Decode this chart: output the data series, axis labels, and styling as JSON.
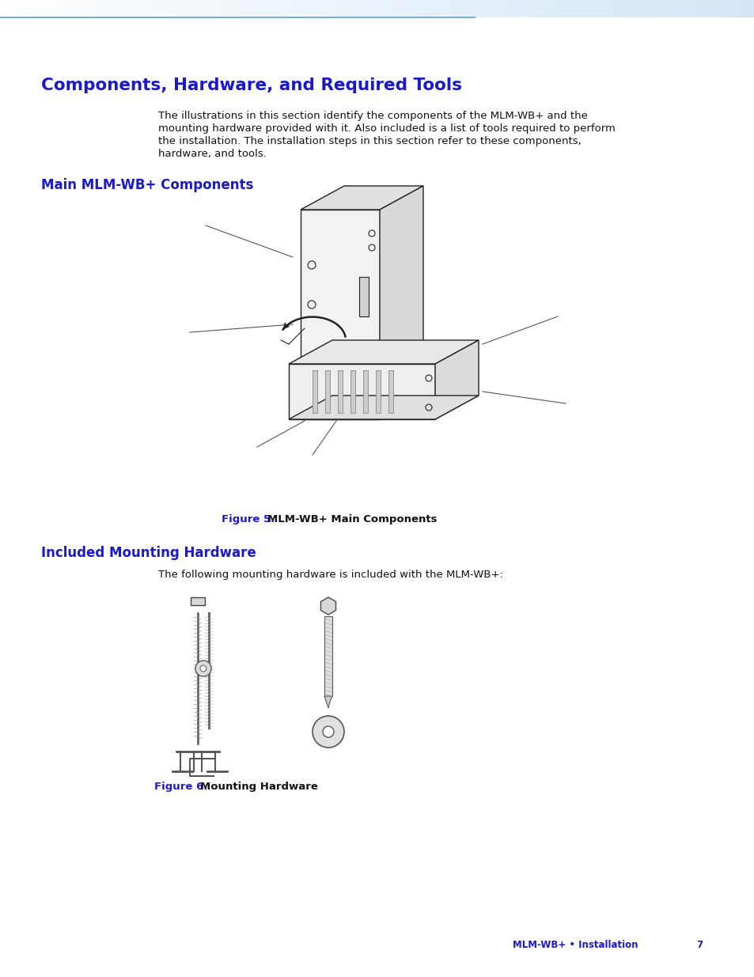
{
  "bg_color": "#ffffff",
  "page_title": "Components, Hardware, and Required Tools",
  "page_title_color": "#1a1acc",
  "page_title_size": 15.5,
  "section1_title": "Main MLM-WB+ Components",
  "section1_title_color": "#1a1acc",
  "section1_title_size": 12,
  "section2_title": "Included Mounting Hardware",
  "section2_title_color": "#1a1acc",
  "section2_title_size": 12,
  "body_text_color": "#111111",
  "body_text_size": 9.5,
  "body_text_line1": "The illustrations in this section identify the components of the MLM-WB+ and the",
  "body_text_line2": "mounting hardware provided with it. Also included is a list of tools required to perform",
  "body_text_line3": "the installation. The installation steps in this section refer to these components,",
  "body_text_line4": "hardware, and tools.",
  "figure5_label": "Figure 5.",
  "figure5_desc": "   MLM-WB+ Main Components",
  "figure6_label": "Figure 6.",
  "figure6_desc": "   Mounting Hardware",
  "figure_label_color": "#1a1acc",
  "figure_desc_color": "#111111",
  "figure_caption_size": 9.5,
  "hardware_text": "The following mounting hardware is included with the MLM-WB+:",
  "footer_text": "MLM-WB+ • Installation",
  "footer_page": "7",
  "footer_color": "#1a1acc",
  "footer_size": 8.5,
  "header_color": "#5b9bd5",
  "draw_color": "#222222",
  "draw_light": "#e8e8e8",
  "draw_mid": "#cccccc",
  "draw_dark": "#999999"
}
